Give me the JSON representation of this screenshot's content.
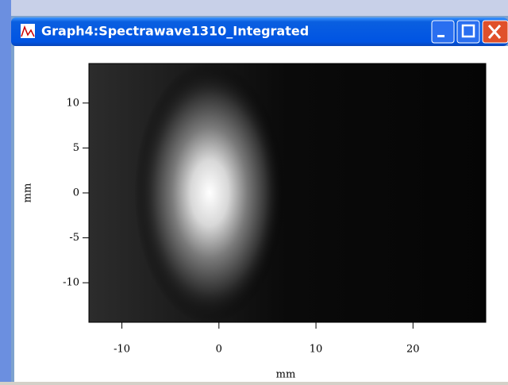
{
  "window": {
    "title": "Graph4:Spectrawave1310_Integrated"
  },
  "chart_data": {
    "type": "image",
    "xlabel": "mm",
    "ylabel": "mm",
    "xlim": [
      -13.4,
      27.5
    ],
    "ylim": [
      -14.4,
      14.4
    ],
    "xticks": [
      -10,
      0,
      10,
      20
    ],
    "yticks": [
      10,
      5,
      0,
      -5,
      -10
    ]
  }
}
